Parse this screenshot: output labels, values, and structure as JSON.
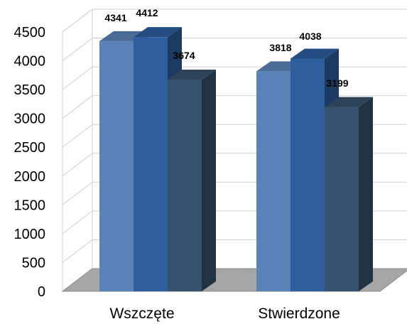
{
  "chart_data": {
    "type": "bar",
    "title": "",
    "xlabel": "",
    "ylabel": "",
    "categories": [
      "Wszczęte",
      "Stwierdzone"
    ],
    "series": [
      {
        "values": [
          4341,
          3818
        ],
        "color": "#5A82B7"
      },
      {
        "values": [
          4412,
          4038
        ],
        "color": "#2E5E9E"
      },
      {
        "values": [
          3674,
          3199
        ],
        "color": "#36526C"
      }
    ],
    "ylim": [
      0,
      4500
    ],
    "yticks": [
      "0",
      "500",
      "1000",
      "1500",
      "2000",
      "2500",
      "3000",
      "3500",
      "4000",
      "4500"
    ],
    "data_labels": [
      [
        "4341",
        "3818"
      ],
      [
        "4412",
        "4038"
      ],
      [
        "3674",
        "3199"
      ]
    ],
    "style": "3d-clustered-column",
    "grid": true,
    "legend": "none"
  }
}
